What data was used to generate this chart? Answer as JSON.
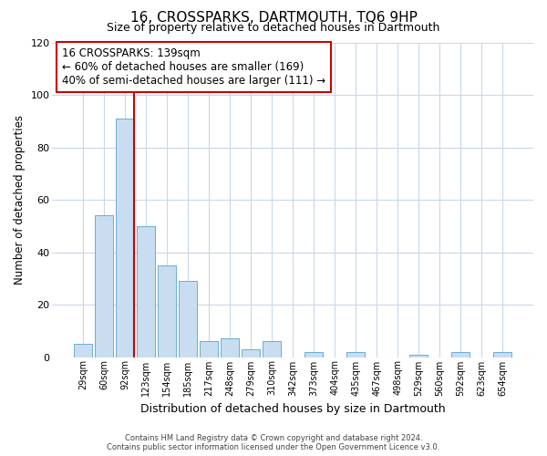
{
  "title": "16, CROSSPARKS, DARTMOUTH, TQ6 9HP",
  "subtitle": "Size of property relative to detached houses in Dartmouth",
  "xlabel": "Distribution of detached houses by size in Dartmouth",
  "ylabel": "Number of detached properties",
  "bar_labels": [
    "29sqm",
    "60sqm",
    "92sqm",
    "123sqm",
    "154sqm",
    "185sqm",
    "217sqm",
    "248sqm",
    "279sqm",
    "310sqm",
    "342sqm",
    "373sqm",
    "404sqm",
    "435sqm",
    "467sqm",
    "498sqm",
    "529sqm",
    "560sqm",
    "592sqm",
    "623sqm",
    "654sqm"
  ],
  "bar_values": [
    5,
    54,
    91,
    50,
    35,
    29,
    6,
    7,
    3,
    6,
    0,
    2,
    0,
    2,
    0,
    0,
    1,
    0,
    2,
    0,
    2
  ],
  "bar_color": "#c9ddf0",
  "bar_edge_color": "#6aaed6",
  "vline_color": "#cc0000",
  "ylim": [
    0,
    120
  ],
  "yticks": [
    0,
    20,
    40,
    60,
    80,
    100,
    120
  ],
  "annotation_title": "16 CROSSPARKS: 139sqm",
  "annotation_line1": "← 60% of detached houses are smaller (169)",
  "annotation_line2": "40% of semi-detached houses are larger (111) →",
  "annotation_box_color": "#ffffff",
  "annotation_box_edge": "#cc0000",
  "footer_line1": "Contains HM Land Registry data © Crown copyright and database right 2024.",
  "footer_line2": "Contains public sector information licensed under the Open Government Licence v3.0.",
  "background_color": "#ffffff",
  "grid_color": "#c8d8ea"
}
